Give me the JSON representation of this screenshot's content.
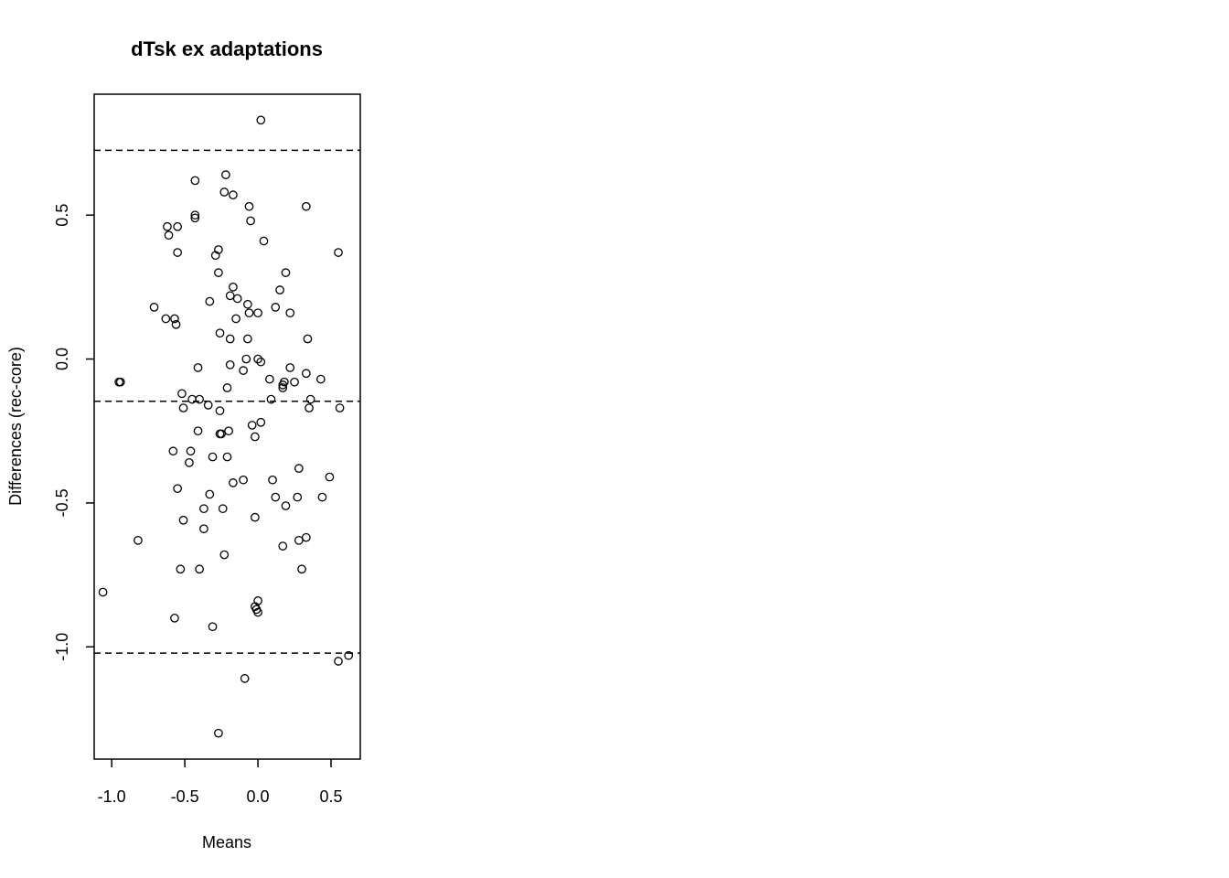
{
  "chart_data": {
    "type": "scatter",
    "title": "dTsk ex adaptations",
    "xlabel": "Means",
    "ylabel": "Differences (rec-core)",
    "xlim": [
      -1.12,
      0.7
    ],
    "ylim": [
      -1.39,
      0.92
    ],
    "x_ticks": [
      -1.0,
      -0.5,
      0.0,
      0.5
    ],
    "x_tick_labels": [
      "-1.0",
      "-0.5",
      "0.0",
      "0.5"
    ],
    "y_ticks": [
      -1.0,
      -0.5,
      0.0,
      0.5
    ],
    "y_tick_labels": [
      "-1.0",
      "-0.5",
      "0.0",
      "0.5"
    ],
    "grid": false,
    "legend": "none",
    "hlines": [
      0.725,
      -0.147,
      -1.022
    ],
    "points": [
      [
        0.02,
        0.83
      ],
      [
        -0.22,
        0.64
      ],
      [
        -0.43,
        0.62
      ],
      [
        -0.23,
        0.58
      ],
      [
        -0.17,
        0.57
      ],
      [
        -0.06,
        0.53
      ],
      [
        0.33,
        0.53
      ],
      [
        -0.43,
        0.5
      ],
      [
        -0.43,
        0.49
      ],
      [
        -0.05,
        0.48
      ],
      [
        -0.62,
        0.46
      ],
      [
        -0.55,
        0.46
      ],
      [
        -0.61,
        0.43
      ],
      [
        0.04,
        0.41
      ],
      [
        -0.27,
        0.38
      ],
      [
        -0.55,
        0.37
      ],
      [
        0.55,
        0.37
      ],
      [
        -0.29,
        0.36
      ],
      [
        -0.27,
        0.3
      ],
      [
        0.19,
        0.3
      ],
      [
        -0.17,
        0.25
      ],
      [
        0.15,
        0.24
      ],
      [
        -0.19,
        0.22
      ],
      [
        -0.14,
        0.21
      ],
      [
        -0.33,
        0.2
      ],
      [
        -0.07,
        0.19
      ],
      [
        -0.71,
        0.18
      ],
      [
        0.12,
        0.18
      ],
      [
        -0.06,
        0.16
      ],
      [
        0.0,
        0.16
      ],
      [
        0.22,
        0.16
      ],
      [
        -0.63,
        0.14
      ],
      [
        -0.57,
        0.14
      ],
      [
        -0.15,
        0.14
      ],
      [
        -0.56,
        0.12
      ],
      [
        -0.26,
        0.09
      ],
      [
        -0.19,
        0.07
      ],
      [
        -0.07,
        0.07
      ],
      [
        0.34,
        0.07
      ],
      [
        -0.08,
        0.0
      ],
      [
        0.0,
        0.0
      ],
      [
        0.02,
        -0.01
      ],
      [
        -0.19,
        -0.02
      ],
      [
        -0.41,
        -0.03
      ],
      [
        0.22,
        -0.03
      ],
      [
        -0.1,
        -0.04
      ],
      [
        0.33,
        -0.05
      ],
      [
        -0.94,
        -0.08
      ],
      [
        -0.95,
        -0.08
      ],
      [
        0.08,
        -0.07
      ],
      [
        0.43,
        -0.07
      ],
      [
        0.18,
        -0.08
      ],
      [
        0.25,
        -0.08
      ],
      [
        0.17,
        -0.09
      ],
      [
        0.17,
        -0.1
      ],
      [
        -0.21,
        -0.1
      ],
      [
        -0.52,
        -0.12
      ],
      [
        -0.4,
        -0.14
      ],
      [
        -0.45,
        -0.14
      ],
      [
        0.09,
        -0.14
      ],
      [
        0.36,
        -0.14
      ],
      [
        -0.34,
        -0.16
      ],
      [
        0.35,
        -0.17
      ],
      [
        -0.51,
        -0.17
      ],
      [
        0.56,
        -0.17
      ],
      [
        -0.26,
        -0.18
      ],
      [
        0.02,
        -0.22
      ],
      [
        -0.04,
        -0.23
      ],
      [
        -0.41,
        -0.25
      ],
      [
        -0.2,
        -0.25
      ],
      [
        -0.26,
        -0.26
      ],
      [
        -0.25,
        -0.26
      ],
      [
        -0.02,
        -0.27
      ],
      [
        -0.58,
        -0.32
      ],
      [
        -0.46,
        -0.32
      ],
      [
        -0.31,
        -0.34
      ],
      [
        -0.21,
        -0.34
      ],
      [
        -0.47,
        -0.36
      ],
      [
        0.28,
        -0.38
      ],
      [
        0.1,
        -0.42
      ],
      [
        -0.1,
        -0.42
      ],
      [
        -0.17,
        -0.43
      ],
      [
        0.49,
        -0.41
      ],
      [
        -0.55,
        -0.45
      ],
      [
        -0.33,
        -0.47
      ],
      [
        0.12,
        -0.48
      ],
      [
        0.27,
        -0.48
      ],
      [
        0.44,
        -0.48
      ],
      [
        0.19,
        -0.51
      ],
      [
        -0.37,
        -0.52
      ],
      [
        -0.24,
        -0.52
      ],
      [
        -0.02,
        -0.55
      ],
      [
        -0.51,
        -0.56
      ],
      [
        -0.37,
        -0.59
      ],
      [
        0.33,
        -0.62
      ],
      [
        -0.82,
        -0.63
      ],
      [
        0.28,
        -0.63
      ],
      [
        0.17,
        -0.65
      ],
      [
        -0.23,
        -0.68
      ],
      [
        -0.53,
        -0.73
      ],
      [
        -0.4,
        -0.73
      ],
      [
        0.3,
        -0.73
      ],
      [
        -1.06,
        -0.81
      ],
      [
        0.0,
        -0.84
      ],
      [
        -0.02,
        -0.86
      ],
      [
        -0.01,
        -0.87
      ],
      [
        0.0,
        -0.88
      ],
      [
        -0.57,
        -0.9
      ],
      [
        -0.31,
        -0.93
      ],
      [
        0.55,
        -1.05
      ],
      [
        0.62,
        -1.03
      ],
      [
        -0.09,
        -1.11
      ],
      [
        -0.27,
        -1.3
      ]
    ]
  }
}
